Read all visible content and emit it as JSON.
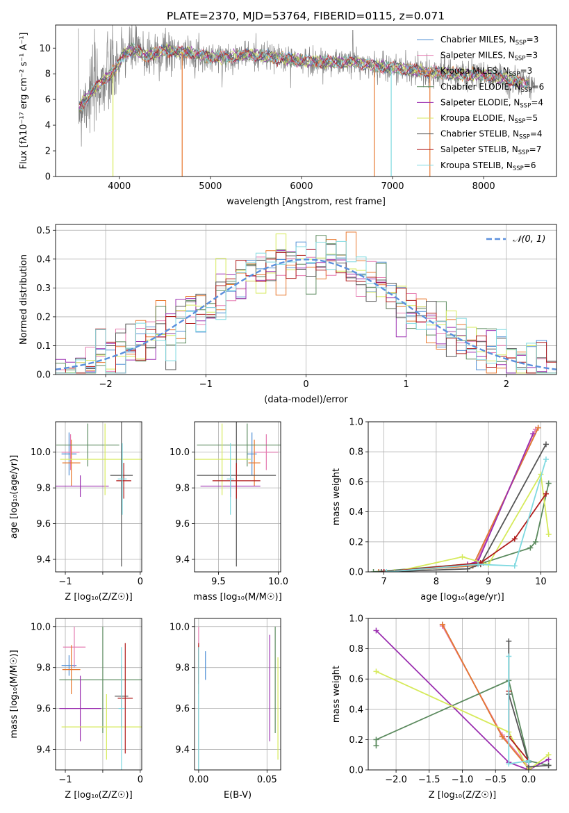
{
  "colors": {
    "Chabrier MILES": "#4f8fd6",
    "Salpeter MILES": "#e57ab0",
    "Kroupa MILES": "#e8782f",
    "Chabrier ELODIE": "#5b8a5e",
    "Salpeter ELODIE": "#9b2fb0",
    "Kroupa ELODIE": "#d6ea5a",
    "Chabrier STELIB": "#555555",
    "Salpeter STELIB": "#b01c1c",
    "Kroupa STELIB": "#7fd9e0",
    "data": "#808080",
    "normal": "#5a8fdd"
  },
  "chart_data": [
    {
      "id": "spectrum",
      "type": "line",
      "title": "PLATE=2370, MJD=53764, FIBERID=0115, z=0.071",
      "xlabel": "wavelength [Angstrom, rest frame]",
      "ylabel": "Flux [fλ10⁻¹⁷ erg cm⁻² s⁻¹ A⁻¹]",
      "xlim": [
        3300,
        8800
      ],
      "ylim": [
        0,
        11.8
      ],
      "xticks": [
        4000,
        5000,
        6000,
        7000,
        8000
      ],
      "yticks": [
        0,
        2,
        4,
        6,
        8,
        10
      ],
      "legend_position": "top-right",
      "legend": [
        {
          "label": "Chabrier MILES, N",
          "sub": "SSP",
          "suffix": "=3"
        },
        {
          "label": "Salpeter MILES, N",
          "sub": "SSP",
          "suffix": "=3"
        },
        {
          "label": "Kroupa MILES, N",
          "sub": "SSP",
          "suffix": "=3"
        },
        {
          "label": "Chabrier ELODIE, N",
          "sub": "SSP",
          "suffix": "=6"
        },
        {
          "label": "Salpeter ELODIE, N",
          "sub": "SSP",
          "suffix": "=4"
        },
        {
          "label": "Kroupa ELODIE, N",
          "sub": "SSP",
          "suffix": "=5"
        },
        {
          "label": "Chabrier STELIB, N",
          "sub": "SSP",
          "suffix": "=4"
        },
        {
          "label": "Salpeter STELIB, N",
          "sub": "SSP",
          "suffix": "=7"
        },
        {
          "label": "Kroupa STELIB, N",
          "sub": "SSP",
          "suffix": "=6"
        }
      ],
      "continuum_points": [
        [
          3550,
          5.3
        ],
        [
          3650,
          6.2
        ],
        [
          3750,
          7.0
        ],
        [
          3850,
          7.6
        ],
        [
          3950,
          8.3
        ],
        [
          4050,
          9.5
        ],
        [
          4150,
          9.9
        ],
        [
          4300,
          9.4
        ],
        [
          4500,
          9.8
        ],
        [
          4800,
          9.6
        ],
        [
          5000,
          9.3
        ],
        [
          5200,
          9.3
        ],
        [
          5400,
          9.5
        ],
        [
          5800,
          9.2
        ],
        [
          6000,
          9.0
        ],
        [
          6300,
          8.9
        ],
        [
          6600,
          8.9
        ],
        [
          6800,
          8.6
        ],
        [
          7000,
          8.5
        ],
        [
          7300,
          8.2
        ],
        [
          7500,
          8.1
        ],
        [
          7800,
          7.9
        ],
        [
          8000,
          7.9
        ],
        [
          8300,
          7.5
        ],
        [
          8500,
          7.2
        ]
      ],
      "grid": false
    },
    {
      "id": "residuals",
      "type": "histogram",
      "xlabel": "(data-model)/error",
      "ylabel": "Normed distribution",
      "xlim": [
        -2.5,
        2.5
      ],
      "ylim": [
        0,
        0.52
      ],
      "xticks": [
        -2,
        -1,
        0,
        1,
        2
      ],
      "yticks": [
        0.0,
        0.1,
        0.2,
        0.3,
        0.4,
        0.5
      ],
      "bin_width": 0.1,
      "legend": "𝒩(0, 1)",
      "legend_position": "top-right",
      "grid": true
    },
    {
      "id": "age-Z",
      "type": "errorbar",
      "xlabel": "Z [log₁₀(Z/Z☉)]",
      "ylabel": "age  [log₁₀(age/yr)]",
      "xlim": [
        -1.13,
        0.02
      ],
      "ylim": [
        9.33,
        10.17
      ],
      "xticks": [
        -1,
        -0.5,
        0
      ],
      "xticklabels": [
        "−1",
        "",
        "0"
      ],
      "yticks": [
        9.4,
        9.6,
        9.8,
        10.0
      ],
      "grid": true,
      "points": [
        {
          "series": "Chabrier MILES",
          "x": -0.95,
          "xerr": 0.1,
          "y": 9.99,
          "yerr": 0.12
        },
        {
          "series": "Salpeter MILES",
          "x": -0.93,
          "xerr": 0.12,
          "y": 10.0,
          "yerr": 0.1
        },
        {
          "series": "Kroupa MILES",
          "x": -0.92,
          "xerr": 0.12,
          "y": 9.94,
          "yerr": 0.13
        },
        {
          "series": "Chabrier ELODIE",
          "x": -0.7,
          "xerr": 0.42,
          "y": 10.04,
          "yerr": 0.12
        },
        {
          "series": "Salpeter ELODIE",
          "x": -0.8,
          "xerr": 0.38,
          "y": 9.81,
          "yerr": 0.06
        },
        {
          "series": "Kroupa ELODIE",
          "x": -0.47,
          "xerr": 0.6,
          "y": 9.96,
          "yerr": 0.2
        },
        {
          "series": "Chabrier STELIB",
          "x": -0.25,
          "xerr": 0.15,
          "y": 9.87,
          "yerr": 0.51
        },
        {
          "series": "Salpeter STELIB",
          "x": -0.22,
          "xerr": 0.1,
          "y": 9.84,
          "yerr": 0.1
        },
        {
          "series": "Kroupa STELIB",
          "x": -0.24,
          "xerr": 0.06,
          "y": 9.85,
          "yerr": 0.2
        }
      ]
    },
    {
      "id": "age-mass",
      "type": "errorbar",
      "xlabel": "mass [log₁₀(M/M☉)]",
      "ylabel": "",
      "xlim": [
        9.3,
        10.02
      ],
      "ylim": [
        9.33,
        10.17
      ],
      "xticks": [
        9.5,
        10.0
      ],
      "yticks": [
        9.4,
        9.6,
        9.8,
        10.0
      ],
      "grid": true,
      "points": [
        {
          "series": "Chabrier MILES",
          "x": 9.78,
          "xerr": 0.04,
          "y": 9.99,
          "yerr": 0.12
        },
        {
          "series": "Salpeter MILES",
          "x": 9.9,
          "xerr": 0.1,
          "y": 10.0,
          "yerr": 0.1
        },
        {
          "series": "Kroupa MILES",
          "x": 9.8,
          "xerr": 0.05,
          "y": 9.94,
          "yerr": 0.13
        },
        {
          "series": "Chabrier ELODIE",
          "x": 9.74,
          "xerr": 0.42,
          "y": 10.04,
          "yerr": 0.12
        },
        {
          "series": "Salpeter ELODIE",
          "x": 9.6,
          "xerr": 0.25,
          "y": 9.81,
          "yerr": 0.06
        },
        {
          "series": "Kroupa ELODIE",
          "x": 9.53,
          "xerr": 0.24,
          "y": 9.96,
          "yerr": 0.2
        },
        {
          "series": "Chabrier STELIB",
          "x": 9.65,
          "xerr": 0.33,
          "y": 9.87,
          "yerr": 0.51
        },
        {
          "series": "Salpeter STELIB",
          "x": 9.65,
          "xerr": 0.2,
          "y": 9.84,
          "yerr": 0.1
        },
        {
          "series": "Kroupa STELIB",
          "x": 9.6,
          "xerr": 0.03,
          "y": 9.85,
          "yerr": 0.2
        }
      ]
    },
    {
      "id": "weight-age",
      "type": "line",
      "xlabel": "age  [log₁₀(age/yr)]",
      "ylabel": "mass weight",
      "xlim": [
        6.7,
        10.3
      ],
      "ylim": [
        0,
        1
      ],
      "xticks": [
        7,
        8,
        9,
        10
      ],
      "yticks": [
        0.0,
        0.2,
        0.4,
        0.6,
        0.8,
        1.0
      ],
      "grid": true,
      "series": [
        {
          "name": "Chabrier MILES",
          "x": [
            6.9,
            8.7,
            9.95
          ],
          "y": [
            0.0,
            0.04,
            0.96
          ]
        },
        {
          "name": "Salpeter MILES",
          "x": [
            6.95,
            8.75,
            9.9
          ],
          "y": [
            0.0,
            0.05,
            0.95
          ]
        },
        {
          "name": "Kroupa MILES",
          "x": [
            6.9,
            8.7,
            9.95
          ],
          "y": [
            0.0,
            0.04,
            0.96
          ]
        },
        {
          "name": "Chabrier ELODIE",
          "x": [
            6.8,
            8.9,
            9.8,
            9.9,
            10.15
          ],
          "y": [
            0.0,
            0.06,
            0.16,
            0.2,
            0.59
          ]
        },
        {
          "name": "Salpeter ELODIE",
          "x": [
            7.0,
            8.6,
            8.8,
            9.85
          ],
          "y": [
            0.0,
            0.05,
            0.07,
            0.92
          ]
        },
        {
          "name": "Kroupa ELODIE",
          "x": [
            7.2,
            8.5,
            9.0,
            10.0,
            10.15
          ],
          "y": [
            0.0,
            0.1,
            0.05,
            0.65,
            0.25
          ]
        },
        {
          "name": "Chabrier STELIB",
          "x": [
            6.95,
            8.6,
            8.85,
            10.1
          ],
          "y": [
            0.0,
            0.02,
            0.05,
            0.85
          ]
        },
        {
          "name": "Salpeter STELIB",
          "x": [
            7.0,
            8.85,
            9.5,
            10.1
          ],
          "y": [
            0.0,
            0.06,
            0.22,
            0.52
          ]
        },
        {
          "name": "Kroupa STELIB",
          "x": [
            7.05,
            8.8,
            9.5,
            10.1
          ],
          "y": [
            0.0,
            0.05,
            0.04,
            0.75
          ]
        }
      ]
    },
    {
      "id": "mass-Z",
      "type": "errorbar",
      "xlabel": "Z [log₁₀(Z/Z☉)]",
      "ylabel": "mass [log₁₀(M/M☉)]",
      "xlim": [
        -1.13,
        0.02
      ],
      "ylim": [
        9.3,
        10.04
      ],
      "xticks": [
        -1,
        -0.5,
        0
      ],
      "xticklabels": [
        "−1",
        "",
        "0"
      ],
      "yticks": [
        9.4,
        9.6,
        9.8,
        10.0
      ],
      "grid": true,
      "points": [
        {
          "series": "Chabrier MILES",
          "x": -0.95,
          "xerr": 0.1,
          "y": 9.81,
          "yerr": 0.05
        },
        {
          "series": "Salpeter MILES",
          "x": -0.88,
          "xerr": 0.15,
          "y": 9.9,
          "yerr": 0.1
        },
        {
          "series": "Kroupa MILES",
          "x": -0.92,
          "xerr": 0.12,
          "y": 9.79,
          "yerr": 0.12
        },
        {
          "series": "Chabrier ELODIE",
          "x": -0.5,
          "xerr": 0.58,
          "y": 9.74,
          "yerr": 0.26
        },
        {
          "series": "Salpeter ELODIE",
          "x": -0.8,
          "xerr": 0.28,
          "y": 9.6,
          "yerr": 0.16
        },
        {
          "series": "Kroupa ELODIE",
          "x": -0.45,
          "xerr": 0.6,
          "y": 9.51,
          "yerr": 0.16
        },
        {
          "series": "Chabrier STELIB",
          "x": -0.25,
          "xerr": 0.09,
          "y": 9.66,
          "yerr": 0.15
        },
        {
          "series": "Salpeter STELIB",
          "x": -0.2,
          "xerr": 0.1,
          "y": 9.65,
          "yerr": 0.27
        },
        {
          "series": "Kroupa STELIB",
          "x": -0.25,
          "xerr": 0.04,
          "y": 9.6,
          "yerr": 0.3
        }
      ]
    },
    {
      "id": "mass-ebv",
      "type": "errorbar",
      "xlabel": "E(B-V)",
      "ylabel": "",
      "xlim": [
        -0.003,
        0.06
      ],
      "ylim": [
        9.3,
        10.04
      ],
      "xticks": [
        0.0,
        0.05
      ],
      "xticklabels": [
        "0.00",
        "0.05"
      ],
      "yticks": [
        9.4,
        9.6,
        9.8,
        10.0
      ],
      "grid": true,
      "points": [
        {
          "series": "Chabrier MILES",
          "x": 0.005,
          "xerr": 0,
          "y": 9.81,
          "yerr": 0.07
        },
        {
          "series": "Salpeter MILES",
          "x": 0.0,
          "xerr": 0,
          "y": 9.9,
          "yerr": 0.1
        },
        {
          "series": "Kroupa MILES",
          "x": 0.0,
          "xerr": 0,
          "y": 9.79,
          "yerr": 0.12
        },
        {
          "series": "Chabrier ELODIE",
          "x": 0.056,
          "xerr": 0,
          "y": 9.74,
          "yerr": 0.26
        },
        {
          "series": "Salpeter ELODIE",
          "x": 0.052,
          "xerr": 0,
          "y": 9.7,
          "yerr": 0.26
        },
        {
          "series": "Kroupa ELODIE",
          "x": 0.058,
          "xerr": 0,
          "y": 9.6,
          "yerr": 0.25
        },
        {
          "series": "Chabrier STELIB",
          "x": 0.0,
          "xerr": 0,
          "y": 9.6,
          "yerr": 0.3
        },
        {
          "series": "Salpeter STELIB",
          "x": 0.0,
          "xerr": 0,
          "y": 9.82,
          "yerr": 0.1
        },
        {
          "series": "Kroupa STELIB",
          "x": 0.0,
          "xerr": 0,
          "y": 9.6,
          "yerr": 0.3
        }
      ]
    },
    {
      "id": "weight-Z",
      "type": "line",
      "xlabel": "Z [log₁₀(Z/Z☉)]",
      "ylabel": "mass weight",
      "xlim": [
        -2.42,
        0.42
      ],
      "ylim": [
        0,
        1
      ],
      "xticks": [
        -2.0,
        -1.5,
        -1.0,
        -0.5,
        0.0
      ],
      "yticks": [
        0.0,
        0.2,
        0.4,
        0.6,
        0.8,
        1.0
      ],
      "grid": true,
      "series": [
        {
          "name": "Chabrier MILES",
          "x": [
            -1.3,
            -0.4,
            0.0
          ],
          "y": [
            0.96,
            0.22,
            0.01
          ]
        },
        {
          "name": "Salpeter MILES",
          "x": [
            -1.3,
            -0.4,
            0.0
          ],
          "y": [
            0.95,
            0.23,
            0.02
          ]
        },
        {
          "name": "Kroupa MILES",
          "x": [
            -1.3,
            -0.4,
            0.0
          ],
          "y": [
            0.96,
            0.22,
            0.01
          ]
        },
        {
          "name": "Chabrier ELODIE",
          "x": [
            -2.3,
            -2.3,
            -0.3,
            0.0,
            0.3
          ],
          "y": [
            0.16,
            0.2,
            0.59,
            0.06,
            0.03
          ]
        },
        {
          "name": "Salpeter ELODIE",
          "x": [
            -2.3,
            -0.3,
            0.0,
            0.3
          ],
          "y": [
            0.92,
            0.05,
            0.0,
            0.07
          ]
        },
        {
          "name": "Kroupa ELODIE",
          "x": [
            -2.3,
            -0.3,
            0.0,
            0.3
          ],
          "y": [
            0.65,
            0.25,
            0.0,
            0.1
          ]
        },
        {
          "name": "Chabrier STELIB",
          "x": [
            -0.3,
            -0.3,
            0.0,
            0.0,
            0.3
          ],
          "y": [
            0.85,
            0.5,
            0.05,
            0.02,
            0.03
          ]
        },
        {
          "name": "Salpeter STELIB",
          "x": [
            -0.3,
            -0.3,
            0.0,
            0.0
          ],
          "y": [
            0.52,
            0.22,
            0.06,
            0.05
          ]
        },
        {
          "name": "Kroupa STELIB",
          "x": [
            -0.3,
            -0.3,
            0.0,
            0.0
          ],
          "y": [
            0.75,
            0.04,
            0.06,
            0.05
          ]
        }
      ]
    }
  ]
}
